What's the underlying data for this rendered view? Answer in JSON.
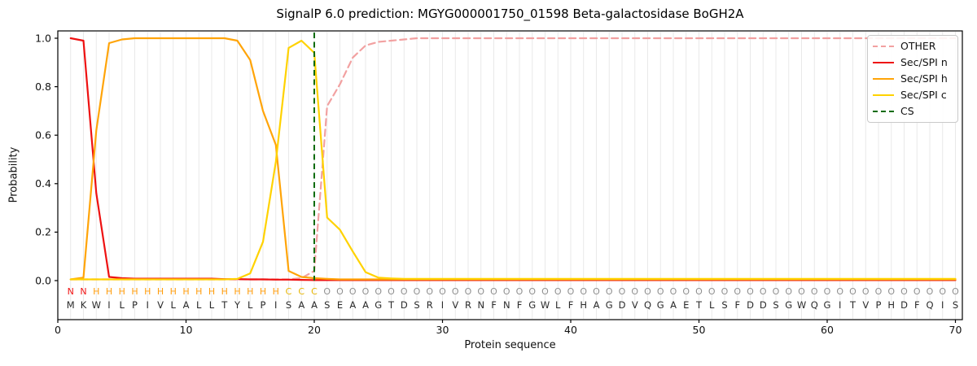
{
  "title": "SignalP 6.0 prediction: MGYG000001750_01598 Beta-galactosidase BoGH2A",
  "axes": {
    "xlabel": "Protein sequence",
    "ylabel": "Probability",
    "yticks": [
      "0.0",
      "0.2",
      "0.4",
      "0.6",
      "0.8",
      "1.0"
    ],
    "xticks": [
      "0",
      "10",
      "20",
      "30",
      "40",
      "50",
      "60",
      "70"
    ]
  },
  "legend": {
    "items": [
      {
        "label": "OTHER",
        "color": "#f2a1a1",
        "dashed": true
      },
      {
        "label": "Sec/SPI n",
        "color": "#ee1111",
        "dashed": false
      },
      {
        "label": "Sec/SPI h",
        "color": "#ffa408",
        "dashed": false
      },
      {
        "label": "Sec/SPI c",
        "color": "#ffd200",
        "dashed": false
      },
      {
        "label": "CS",
        "color": "#0a6b0a",
        "dashed": true
      }
    ]
  },
  "chart_data": {
    "type": "line",
    "title": "SignalP 6.0 prediction: MGYG000001750_01598 Beta-galactosidase BoGH2A",
    "xlabel": "Protein sequence",
    "ylabel": "Probability",
    "xlim": [
      0,
      70.5
    ],
    "ylim": [
      -0.16,
      1.03
    ],
    "grid": "vertical-per-residue",
    "legend_position": "upper-right",
    "x_positions": "residues 1-70",
    "cs_line": {
      "name": "CS",
      "position": 20,
      "color": "#0a6b0a",
      "dashed": true
    },
    "sequence": "MKWILPIVLALLTYLPISAASEAAGTDSRIVRNFNFGWLFHAGDVQGAETLSFDDSGWQGITVPHDFQIS",
    "regions": "NNHHHHHHHHHHHHHHHCCCOOOOOOOOOOOOOOOOOOOOOOOOOOOOOOOOOOOOOOOOOOOOOOOOOO",
    "region_colors": {
      "N": "#f01414",
      "H": "#ff9d0e",
      "C": "#e6b400",
      "O": "#8f8f8f"
    },
    "sequence_color": "#2a2a2a",
    "gridline_color": "#e9e9e9",
    "series": [
      {
        "name": "OTHER",
        "color": "#f2a1a1",
        "dashed": true,
        "values": [
          0.005,
          0.005,
          0.005,
          0.005,
          0.005,
          0.005,
          0.005,
          0.005,
          0.005,
          0.005,
          0.005,
          0.005,
          0.005,
          0.005,
          0.005,
          0.005,
          0.005,
          0.005,
          0.01,
          0.04,
          0.72,
          0.81,
          0.92,
          0.97,
          0.985,
          0.99,
          0.995,
          1.0,
          1.0,
          1.0,
          1.0,
          1.0,
          1.0,
          1.0,
          1.0,
          1.0,
          1.0,
          1.0,
          1.0,
          1.0,
          1.0,
          1.0,
          1.0,
          1.0,
          1.0,
          1.0,
          1.0,
          1.0,
          1.0,
          1.0,
          1.0,
          1.0,
          1.0,
          1.0,
          1.0,
          1.0,
          1.0,
          1.0,
          1.0,
          1.0,
          1.0,
          1.0,
          1.0,
          1.0,
          1.0,
          1.0,
          1.0,
          1.0,
          1.0,
          1.0
        ]
      },
      {
        "name": "Sec/SPI n",
        "color": "#ee1111",
        "dashed": false,
        "values": [
          1.0,
          0.99,
          0.36,
          0.015,
          0.01,
          0.008,
          0.008,
          0.008,
          0.008,
          0.008,
          0.008,
          0.008,
          0.006,
          0.006,
          0.005,
          0.005,
          0.004,
          0.004,
          0.003,
          0.002,
          0.002,
          0.002,
          0.002,
          0.002,
          0.002,
          0.002,
          0.002,
          0.002,
          0.002,
          0.002,
          0.002,
          0.002,
          0.002,
          0.002,
          0.002,
          0.002,
          0.002,
          0.002,
          0.002,
          0.002,
          0.002,
          0.002,
          0.002,
          0.002,
          0.002,
          0.002,
          0.002,
          0.002,
          0.002,
          0.002,
          0.002,
          0.002,
          0.002,
          0.002,
          0.002,
          0.002,
          0.002,
          0.002,
          0.002,
          0.002,
          0.002,
          0.002,
          0.002,
          0.002,
          0.002,
          0.002,
          0.002,
          0.002,
          0.002,
          0.002
        ]
      },
      {
        "name": "Sec/SPI h",
        "color": "#ffa408",
        "dashed": false,
        "values": [
          0.005,
          0.012,
          0.62,
          0.98,
          0.995,
          1.0,
          1.0,
          1.0,
          1.0,
          1.0,
          1.0,
          1.0,
          1.0,
          0.99,
          0.91,
          0.7,
          0.56,
          0.04,
          0.015,
          0.01,
          0.007,
          0.005,
          0.005,
          0.005,
          0.005,
          0.005,
          0.005,
          0.005,
          0.005,
          0.005,
          0.005,
          0.005,
          0.005,
          0.005,
          0.005,
          0.005,
          0.005,
          0.005,
          0.005,
          0.005,
          0.005,
          0.005,
          0.005,
          0.005,
          0.005,
          0.005,
          0.005,
          0.005,
          0.005,
          0.005,
          0.005,
          0.005,
          0.005,
          0.005,
          0.005,
          0.005,
          0.005,
          0.005,
          0.005,
          0.005,
          0.005,
          0.005,
          0.005,
          0.005,
          0.005,
          0.005,
          0.005,
          0.005,
          0.005,
          0.005
        ]
      },
      {
        "name": "Sec/SPI c",
        "color": "#ffd200",
        "dashed": false,
        "values": [
          0.005,
          0.005,
          0.005,
          0.005,
          0.005,
          0.005,
          0.005,
          0.005,
          0.005,
          0.005,
          0.005,
          0.005,
          0.005,
          0.007,
          0.03,
          0.16,
          0.49,
          0.96,
          0.99,
          0.94,
          0.26,
          0.21,
          0.12,
          0.035,
          0.012,
          0.009,
          0.007,
          0.007,
          0.007,
          0.007,
          0.007,
          0.007,
          0.007,
          0.007,
          0.007,
          0.007,
          0.007,
          0.007,
          0.007,
          0.007,
          0.007,
          0.007,
          0.007,
          0.007,
          0.007,
          0.007,
          0.007,
          0.007,
          0.007,
          0.007,
          0.007,
          0.007,
          0.007,
          0.007,
          0.007,
          0.007,
          0.007,
          0.007,
          0.007,
          0.007,
          0.007,
          0.007,
          0.007,
          0.007,
          0.007,
          0.007,
          0.007,
          0.007,
          0.007,
          0.007
        ]
      }
    ]
  }
}
